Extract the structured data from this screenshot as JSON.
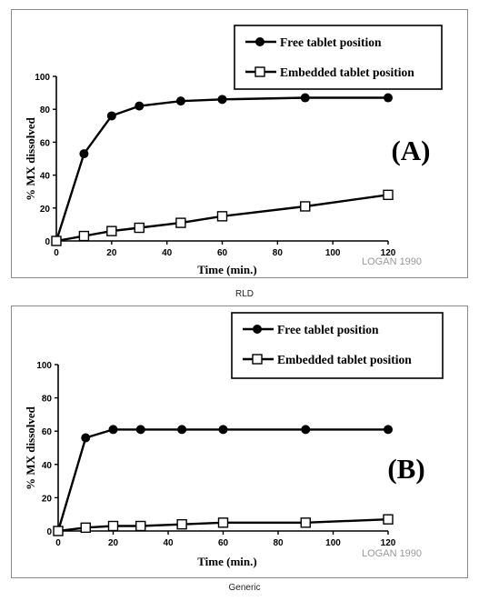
{
  "chart_data": [
    {
      "type": "line",
      "panel_label": "(A)",
      "caption": "RLD",
      "watermark": "LOGAN 1990",
      "xlabel": "Time (min.)",
      "ylabel": "% MX dissolved",
      "xlim": [
        0,
        120
      ],
      "ylim": [
        0,
        100
      ],
      "xticks": [
        "0",
        "20",
        "40",
        "60",
        "80",
        "100",
        "120"
      ],
      "yticks": [
        "0",
        "20",
        "40",
        "60",
        "80",
        "100"
      ],
      "legend_position": "top-right",
      "series": [
        {
          "name": "Free tablet position",
          "marker": "filled-circle",
          "x": [
            0,
            10,
            20,
            30,
            45,
            60,
            90,
            120
          ],
          "y": [
            0,
            53,
            76,
            82,
            85,
            86,
            87,
            87
          ]
        },
        {
          "name": "Embedded tablet position",
          "marker": "open-square",
          "x": [
            0,
            10,
            20,
            30,
            45,
            60,
            90,
            120
          ],
          "y": [
            0,
            3,
            6,
            8,
            11,
            15,
            21,
            28
          ]
        }
      ]
    },
    {
      "type": "line",
      "panel_label": "(B)",
      "caption": "Generic",
      "watermark": "LOGAN 1990",
      "xlabel": "Time (min.)",
      "ylabel": "% MX dissolved",
      "xlim": [
        0,
        120
      ],
      "ylim": [
        0,
        100
      ],
      "xticks": [
        "0",
        "20",
        "40",
        "60",
        "80",
        "100",
        "120"
      ],
      "yticks": [
        "0",
        "20",
        "40",
        "60",
        "80",
        "100"
      ],
      "legend_position": "top-right",
      "series": [
        {
          "name": "Free tablet position",
          "marker": "filled-circle",
          "x": [
            0,
            10,
            20,
            30,
            45,
            60,
            90,
            120
          ],
          "y": [
            0,
            56,
            61,
            61,
            61,
            61,
            61,
            61
          ]
        },
        {
          "name": "Embedded tablet position",
          "marker": "open-square",
          "x": [
            0,
            10,
            20,
            30,
            45,
            60,
            90,
            120
          ],
          "y": [
            0,
            2,
            3,
            3,
            4,
            5,
            5,
            7
          ]
        }
      ]
    }
  ]
}
